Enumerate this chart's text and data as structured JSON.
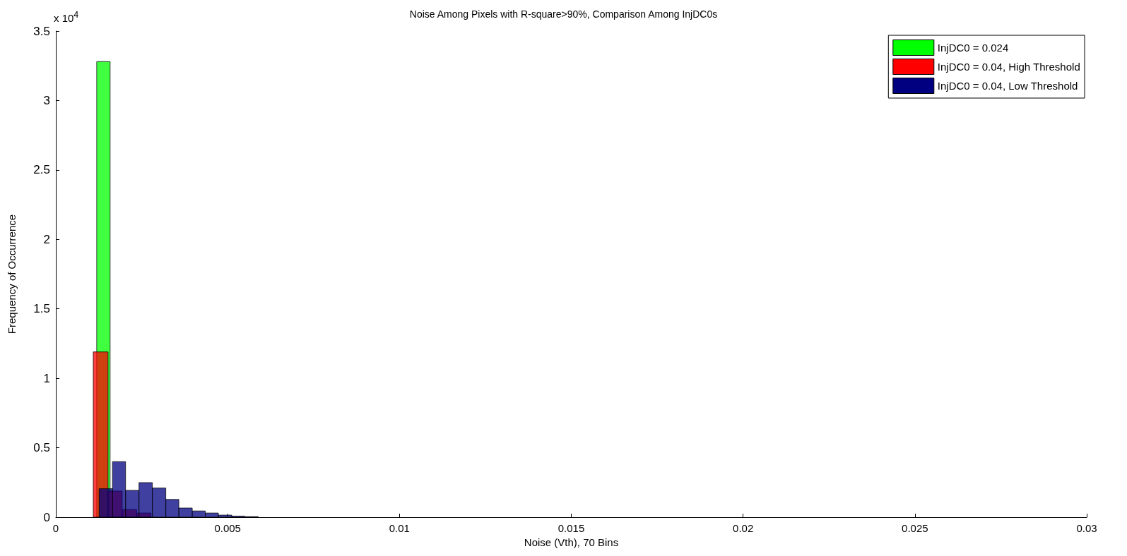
{
  "chart_data": {
    "type": "histogram",
    "title": "Noise Among Pixels with R-square>90%, Comparison Among InjDC0s",
    "xlabel": "Noise (Vth), 70 Bins",
    "ylabel": "Frequency of Occurrence",
    "annotations": [
      "x 10$^{4}$"
    ],
    "bins": [
      0.00119,
      0.00158
    ],
    "xlim": [
      0,
      0.03
    ],
    "xticks": [
      0,
      0.005,
      0.01,
      0.015,
      0.02,
      0.025,
      0.03
    ],
    "ylim": [
      0,
      3.5
    ],
    "yticks": [
      0,
      0.5,
      1,
      1.5,
      2,
      2.5,
      3,
      3.5
    ],
    "grid": false,
    "legend": "top right",
    "series": [
      {
        "name": "InjDC0 = 0.024",
        "color": "#00ff00",
        "values": [
          3.28
        ]
      },
      {
        "name": "InjDC0 = 0.04, High Threshold",
        "color": "#ff0000",
        "bins": [
          0.00109,
          0.00152,
          0.00193,
          0.00235,
          0.00277
        ],
        "values": [
          1.19,
          0.188,
          0.055,
          0.03
        ]
      },
      {
        "name": "InjDC0 = 0.04, Low Threshold",
        "color": "#000080",
        "bins": [
          0.00126,
          0.00165,
          0.00203,
          0.00242,
          0.00281,
          0.0032,
          0.00358,
          0.00397,
          0.00435,
          0.00473,
          0.00512,
          0.0055,
          0.00589
        ],
        "values": [
          0.205,
          0.4,
          0.193,
          0.249,
          0.21,
          0.128,
          0.066,
          0.045,
          0.03,
          0.015,
          0.008,
          0.004
        ]
      }
    ]
  }
}
